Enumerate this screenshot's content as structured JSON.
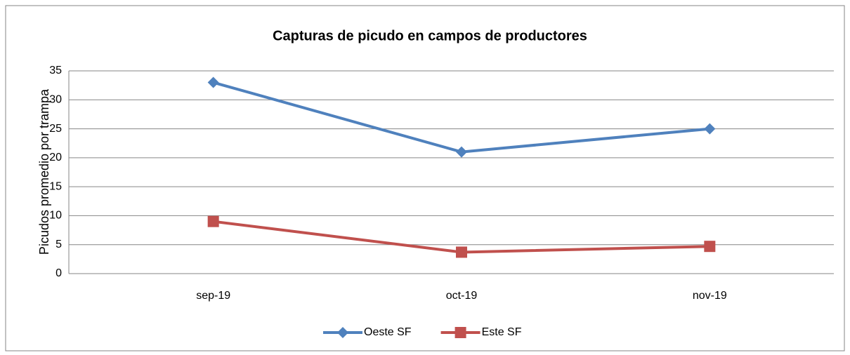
{
  "chart_data": {
    "type": "line",
    "title": "Capturas de picudo en campos de productores",
    "y_label": "Picudos promedio por trampa",
    "categories": [
      "sep-19",
      "oct-19",
      "nov-19"
    ],
    "series": [
      {
        "name": "Oeste SF",
        "color": "#4f81bd",
        "marker": "diamond",
        "values": [
          33,
          21,
          25
        ]
      },
      {
        "name": "Este SF",
        "color": "#c0504d",
        "marker": "square",
        "values": [
          9,
          3.7,
          4.7
        ]
      }
    ],
    "ylim": [
      0,
      35
    ],
    "yticks": [
      0,
      5,
      10,
      15,
      20,
      25,
      30,
      35
    ],
    "grid": true,
    "legend": "bottom"
  }
}
